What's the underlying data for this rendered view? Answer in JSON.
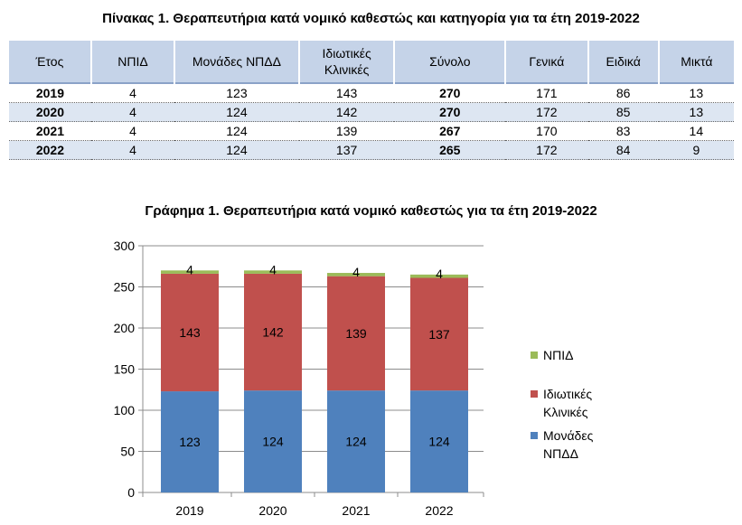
{
  "table": {
    "title": "Πίνακας 1. Θεραπευτήρια κατά νομικό καθεστώς και κατηγορία για τα έτη 2019-2022",
    "headers": [
      "Έτος",
      "ΝΠΙΔ",
      "Μονάδες ΝΠΔΔ",
      "Ιδιωτικές Κλινικές",
      "Σύνολο",
      "Γενικά",
      "Ειδικά",
      "Μικτά"
    ],
    "rows": [
      [
        "2019",
        "4",
        "123",
        "143",
        "270",
        "171",
        "86",
        "13"
      ],
      [
        "2020",
        "4",
        "124",
        "142",
        "270",
        "172",
        "85",
        "13"
      ],
      [
        "2021",
        "4",
        "124",
        "139",
        "267",
        "170",
        "83",
        "14"
      ],
      [
        "2022",
        "4",
        "124",
        "137",
        "265",
        "172",
        "84",
        "9"
      ]
    ]
  },
  "chart_data": {
    "type": "bar",
    "stacked": true,
    "title": "Γράφημα 1. Θεραπευτήρια κατά νομικό καθεστώς για τα έτη 2019-2022",
    "xlabel": "",
    "ylabel": "",
    "categories": [
      "2019",
      "2020",
      "2021",
      "2022"
    ],
    "ylim": [
      0,
      300
    ],
    "yticks": [
      0,
      50,
      100,
      150,
      200,
      250,
      300
    ],
    "grid": true,
    "legend_position": "right",
    "series": [
      {
        "name": "Μονάδες ΝΠΔΔ",
        "values": [
          123,
          124,
          124,
          124
        ],
        "color": "#4f81bd",
        "legend_lines": [
          "Μονάδες",
          "ΝΠΔΔ"
        ]
      },
      {
        "name": "Ιδιωτικές Κλινικές",
        "values": [
          143,
          142,
          139,
          137
        ],
        "color": "#c0504d",
        "legend_lines": [
          "Ιδιωτικές",
          "Κλινικές"
        ]
      },
      {
        "name": "ΝΠΙΔ",
        "values": [
          4,
          4,
          4,
          4
        ],
        "color": "#9bbb59",
        "legend_lines": [
          "ΝΠΙΔ"
        ]
      }
    ]
  }
}
